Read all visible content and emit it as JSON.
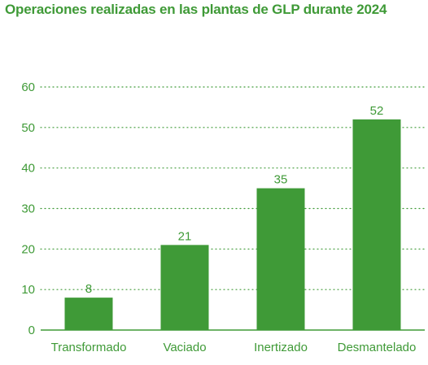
{
  "colors": {
    "accent": "#3f9a37",
    "bar": "#3f9a37",
    "gridline": "#3f9a37",
    "axis": "#3f9a37"
  },
  "chart_data": {
    "type": "bar",
    "title": "Operaciones realizadas en las plantas de GLP durante 2024",
    "xlabel": "",
    "ylabel": "",
    "categories": [
      "Transformado",
      "Vaciado",
      "Inertizado",
      "Desmantelado"
    ],
    "values": [
      8,
      21,
      35,
      52
    ],
    "data_labels": [
      "8",
      "21",
      "35",
      "52"
    ],
    "ylim": [
      0,
      60
    ],
    "yticks": [
      0,
      10,
      20,
      30,
      40,
      50,
      60
    ],
    "ytick_labels": [
      "0",
      "10",
      "20",
      "30",
      "40",
      "50",
      "60"
    ],
    "grid": true,
    "grid_style": "dotted",
    "legend": "none"
  }
}
